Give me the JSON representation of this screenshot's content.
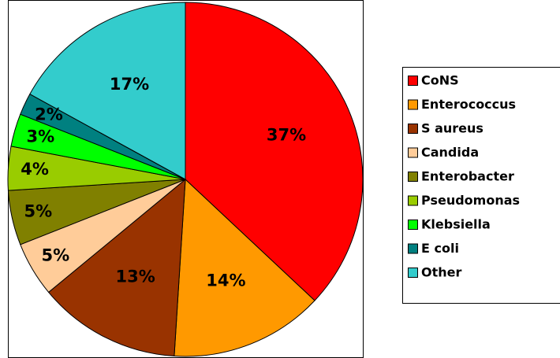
{
  "chart_data": {
    "type": "pie",
    "categories": [
      "CoNS",
      "Enterococcus",
      "S aureus",
      "Candida",
      "Enterobacter",
      "Pseudomonas",
      "Klebsiella",
      "E coli",
      "Other"
    ],
    "values": [
      37,
      14,
      13,
      5,
      5,
      4,
      3,
      2,
      17
    ],
    "value_labels": [
      "37%",
      "14%",
      "13%",
      "5%",
      "5%",
      "4%",
      "3%",
      "2%",
      "17%"
    ],
    "colors": [
      "#ff0000",
      "#ff9900",
      "#993300",
      "#ffcc99",
      "#808000",
      "#99cc00",
      "#00ff00",
      "#008080",
      "#33cccc"
    ],
    "legend": "right"
  }
}
